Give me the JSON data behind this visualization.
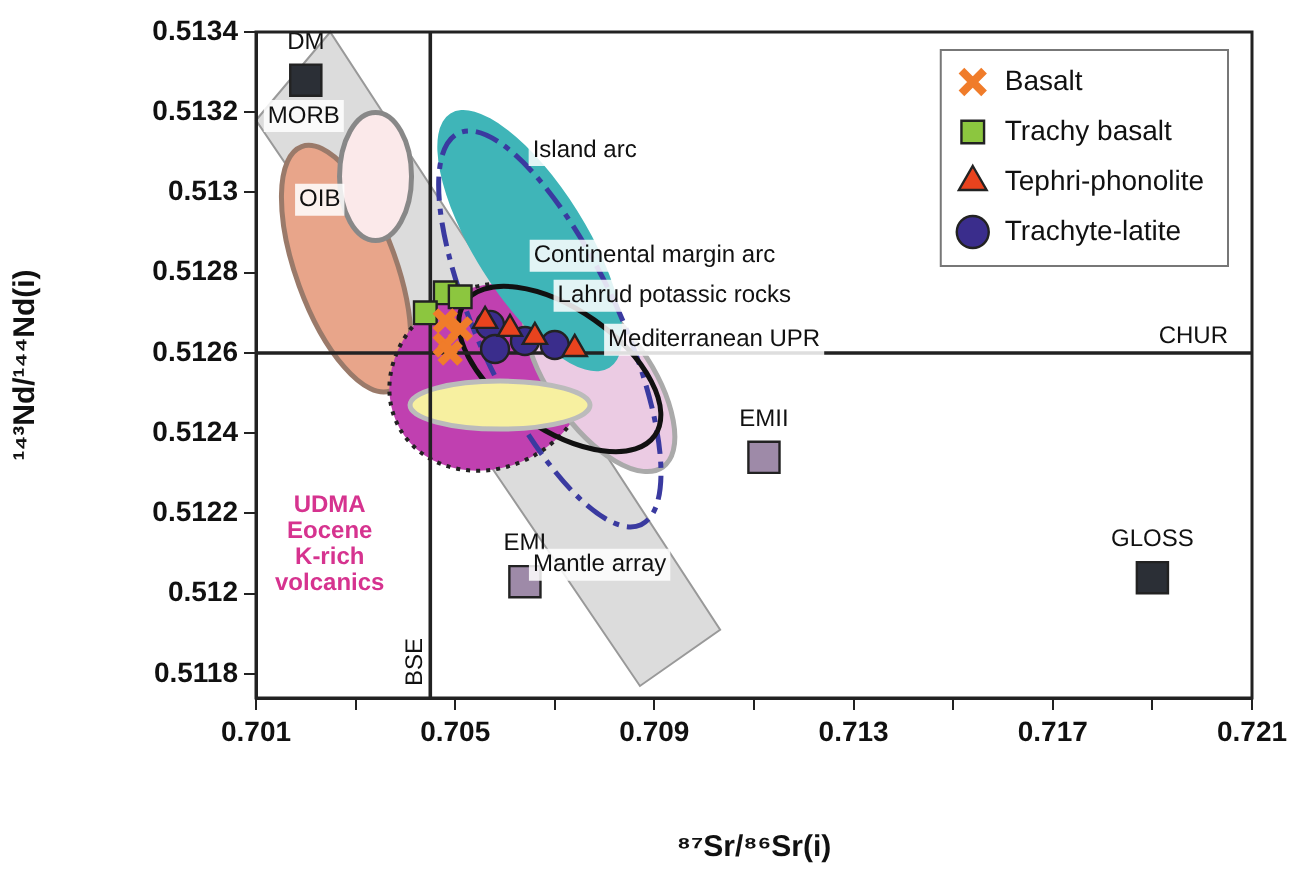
{
  "chart_data": {
    "type": "scatter",
    "xlabel": "⁸⁷Sr/⁸⁶Sr(i)",
    "ylabel": "¹⁴³Nd/¹⁴⁴Nd(i)",
    "xlim": [
      0.701,
      0.721
    ],
    "ylim": [
      0.51174,
      0.5134
    ],
    "xticks": [
      0.701,
      {
        "value": 0.703,
        "label": null
      },
      0.705,
      {
        "value": 0.707,
        "label": null
      },
      0.709,
      {
        "value": 0.711,
        "label": null
      },
      0.713,
      {
        "value": 0.715,
        "label": null
      },
      0.717,
      {
        "value": 0.719,
        "label": null
      },
      0.721
    ],
    "yticks": [
      0.5118,
      0.512,
      0.5122,
      0.5124,
      0.5126,
      0.5128,
      0.513,
      0.5132,
      0.5134
    ],
    "grid": false,
    "legend": "top right",
    "series": [
      {
        "name": "Basalt",
        "color": "#f07c2a",
        "marker": "cross",
        "x": [
          0.7048,
          0.7051,
          0.7048,
          0.7049
        ],
        "values": [
          0.51268,
          0.51266,
          0.51262,
          0.5126
        ]
      },
      {
        "name": "Trachy basalt",
        "color": "#8cc63f",
        "marker": "square",
        "x": [
          0.7048,
          0.7051,
          0.7044
        ],
        "values": [
          0.51275,
          0.51274,
          0.5127
        ]
      },
      {
        "name": "Tephri-phonolite",
        "color": "#e8431e",
        "marker": "triangle",
        "x": [
          0.7056,
          0.7061,
          0.7066,
          0.7074
        ],
        "values": [
          0.51268,
          0.51266,
          0.51264,
          0.51261
        ]
      },
      {
        "name": "Trachyte-latite",
        "color": "#3a2d8c",
        "marker": "circle",
        "x": [
          0.7057,
          0.7064,
          0.707,
          0.7058
        ],
        "values": [
          0.51267,
          0.51263,
          0.51262,
          0.51261
        ]
      },
      {
        "colors": [
          "#2b2f36",
          "#9e8aa8",
          "#9e8aa8",
          "#2b2f36"
        ],
        "marker": "square",
        "x": [
          0.702,
          0.7112,
          0.7064,
          0.719
        ],
        "values": [
          0.51328,
          0.51234,
          0.51203,
          0.51204
        ]
      }
    ],
    "ref_lines": [
      {
        "axis": "y",
        "value": 0.5126,
        "label": "CHUR"
      },
      {
        "axis": "x",
        "value": 0.7045,
        "label": "BSE"
      }
    ],
    "annotations": [
      {
        "text": "DM",
        "x": 0.702,
        "y": 0.51328
      },
      {
        "text": "EMII",
        "x": 0.7112,
        "y": 0.51234
      },
      {
        "text": "EMI",
        "x": 0.7064,
        "y": 0.51203
      },
      {
        "text": "GLOSS",
        "x": 0.719,
        "y": 0.51204
      },
      "MORB",
      "OIB",
      "Island arc",
      "Continental margin arc",
      "Lahrud potassic rocks",
      "Mediterranean UPR",
      "UDMA\nEocene\nK-rich\nvolcanics",
      "Mantle array"
    ]
  }
}
